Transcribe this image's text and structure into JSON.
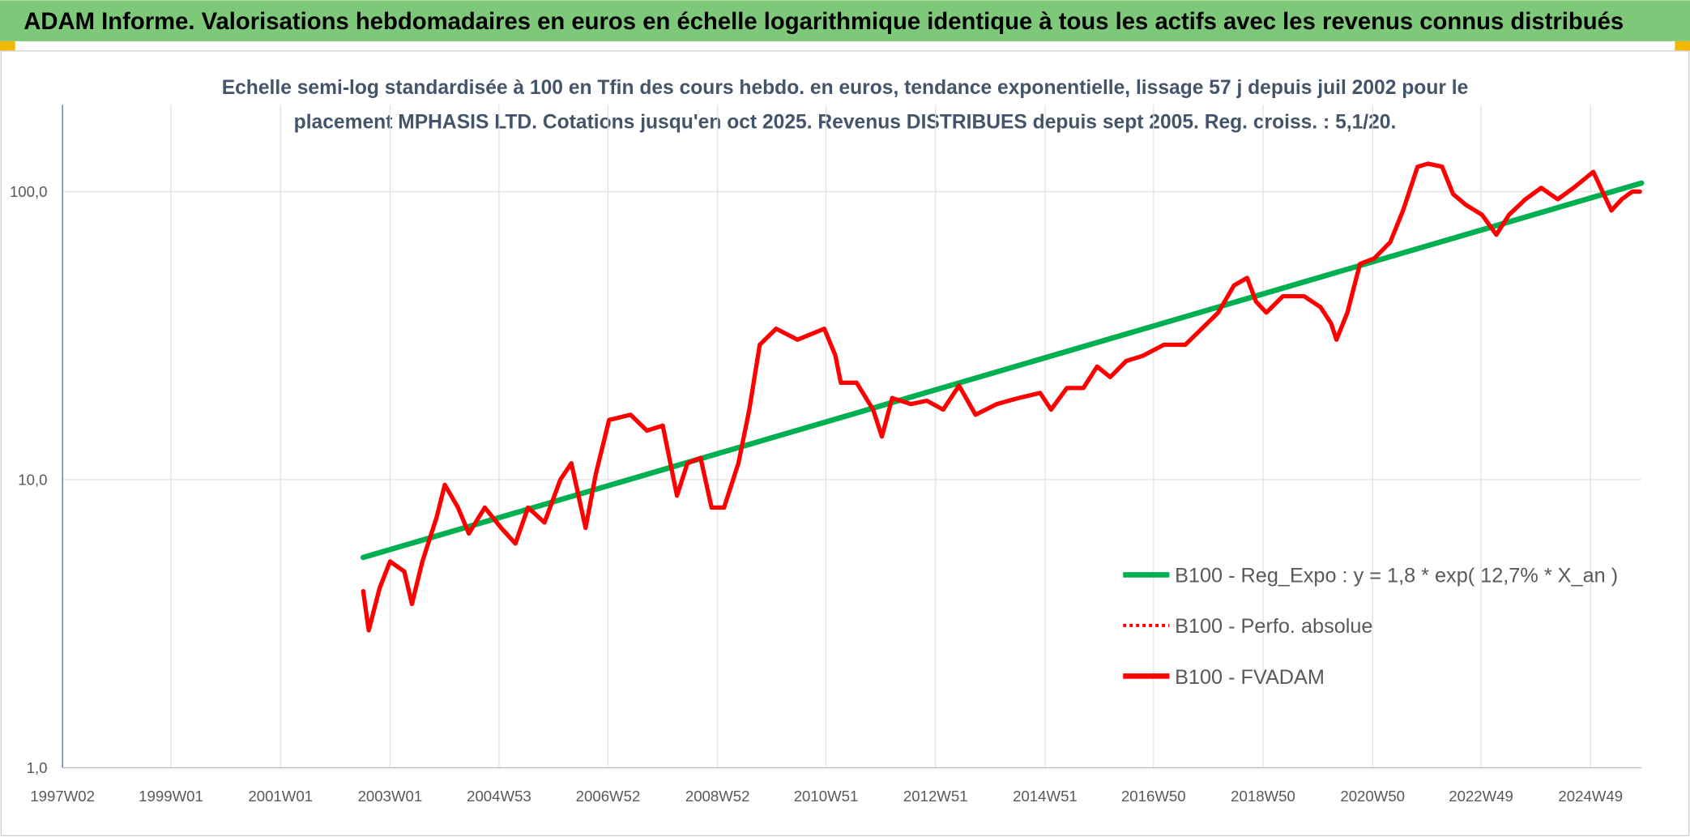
{
  "chart_data": {
    "type": "line",
    "title": "ADAM Informe. Valorisations hebdomadaires en euros en échelle logarithmique identique à tous les actifs avec les revenus connus distribués",
    "subtitle": [
      "Echelle semi-log standardisée à 100 en Tfin des cours hebdo. en euros, tendance exponentielle, lissage 57 j depuis juil 2002 pour le",
      "placement MPHASIS LTD. Cotations jusqu'en oct 2025. Revenus DISTRIBUES depuis sept 2005. Reg. croiss. : 5,1/20."
    ],
    "log_scale": true,
    "grid": true,
    "legend": "right",
    "xlim": [
      1997.02,
      2025.85
    ],
    "xticks": [
      {
        "value": 1997.02,
        "label": "1997W02"
      },
      {
        "value": 1999.0,
        "label": "1999W01"
      },
      {
        "value": 2001.0,
        "label": "2001W01"
      },
      {
        "value": 2003.0,
        "label": "2003W01"
      },
      {
        "value": 2004.99,
        "label": "2004W53"
      },
      {
        "value": 2006.98,
        "label": "2006W52"
      },
      {
        "value": 2008.98,
        "label": "2008W52"
      },
      {
        "value": 2010.96,
        "label": "2010W51"
      },
      {
        "value": 2012.96,
        "label": "2012W51"
      },
      {
        "value": 2014.96,
        "label": "2014W51"
      },
      {
        "value": 2016.94,
        "label": "2016W50"
      },
      {
        "value": 2018.94,
        "label": "2018W50"
      },
      {
        "value": 2020.94,
        "label": "2020W50"
      },
      {
        "value": 2022.92,
        "label": "2022W49"
      },
      {
        "value": 2024.92,
        "label": "2024W49"
      }
    ],
    "ylim": [
      1,
      200
    ],
    "yticks": [
      {
        "value": 1,
        "label": "1,0"
      },
      {
        "value": 10,
        "label": "10,0"
      },
      {
        "value": 100,
        "label": "100,0"
      }
    ],
    "series": [
      {
        "name": "B100 - Reg_Expo : y = 1,8 * exp( 12,7% *  X_an )",
        "color": "#00b050",
        "style": "solid",
        "x": [
          2002.51,
          2025.85
        ],
        "values": [
          5.37,
          107
        ]
      },
      {
        "name": "B100 - Perfo. absolue",
        "color": "#ff0000",
        "style": "dotted",
        "x": [
          2002.51,
          2002.61,
          2002.81,
          2003.0,
          2003.26,
          2003.4,
          2003.59,
          2003.85,
          2004.0,
          2004.24,
          2004.44,
          2004.73,
          2005.03,
          2005.29,
          2005.52,
          2005.82,
          2006.11,
          2006.31,
          2006.57,
          2006.76,
          2007.0,
          2007.39,
          2007.69,
          2007.98,
          2008.24,
          2008.43,
          2008.67,
          2008.87,
          2009.1,
          2009.36,
          2009.56,
          2009.75,
          2010.05,
          2010.44,
          2010.93,
          2011.13,
          2011.23,
          2011.52,
          2011.82,
          2011.98,
          2012.17,
          2012.51,
          2012.8,
          2013.1,
          2013.39,
          2013.69,
          2014.08,
          2014.48,
          2014.87,
          2015.07,
          2015.36,
          2015.66,
          2015.91,
          2016.15,
          2016.44,
          2016.74,
          2017.13,
          2017.52,
          2017.82,
          2018.12,
          2018.41,
          2018.65,
          2018.81,
          2019.0,
          2019.3,
          2019.69,
          2019.99,
          2020.18,
          2020.28,
          2020.48,
          2020.71,
          2020.97,
          2021.26,
          2021.5,
          2021.76,
          2021.95,
          2022.21,
          2022.41,
          2022.64,
          2022.94,
          2023.2,
          2023.43,
          2023.73,
          2024.02,
          2024.32,
          2024.61,
          2024.97,
          2025.16,
          2025.3,
          2025.49,
          2025.68,
          2025.82
        ],
        "values": [
          4.1,
          3.0,
          4.2,
          5.2,
          4.8,
          3.7,
          5.2,
          7.4,
          9.6,
          8.0,
          6.5,
          8.0,
          6.8,
          6.0,
          8.0,
          7.1,
          10.0,
          11.4,
          6.8,
          10.5,
          16.1,
          16.8,
          14.8,
          15.4,
          8.8,
          11.4,
          11.9,
          8.0,
          8.0,
          11.4,
          17.5,
          29.4,
          33.4,
          30.6,
          33.4,
          27.0,
          21.7,
          21.7,
          17.5,
          14.1,
          19.2,
          18.3,
          18.8,
          17.5,
          21.2,
          16.8,
          18.3,
          19.2,
          20.0,
          17.5,
          20.8,
          20.8,
          24.7,
          22.7,
          25.8,
          26.9,
          29.4,
          29.4,
          33.4,
          38.0,
          47.2,
          50.2,
          41.5,
          38.0,
          43.3,
          43.3,
          39.7,
          34.9,
          30.6,
          38.0,
          56.1,
          58.6,
          66.7,
          86.4,
          121.9,
          125,
          122,
          98,
          90,
          83,
          70.8,
          83,
          94,
          103,
          94,
          103,
          117,
          98,
          86,
          94,
          100,
          100
        ]
      },
      {
        "name": "B100 - FVADAM",
        "color": "#ff0000",
        "style": "solid",
        "x": [
          2002.51,
          2002.61,
          2002.81,
          2003.0,
          2003.26,
          2003.4,
          2003.59,
          2003.85,
          2004.0,
          2004.24,
          2004.44,
          2004.73,
          2005.03,
          2005.29,
          2005.52,
          2005.82,
          2006.11,
          2006.31,
          2006.57,
          2006.76,
          2007.0,
          2007.39,
          2007.69,
          2007.98,
          2008.24,
          2008.43,
          2008.67,
          2008.87,
          2009.1,
          2009.36,
          2009.56,
          2009.75,
          2010.05,
          2010.44,
          2010.93,
          2011.13,
          2011.23,
          2011.52,
          2011.82,
          2011.98,
          2012.17,
          2012.51,
          2012.8,
          2013.1,
          2013.39,
          2013.69,
          2014.08,
          2014.48,
          2014.87,
          2015.07,
          2015.36,
          2015.66,
          2015.91,
          2016.15,
          2016.44,
          2016.74,
          2017.13,
          2017.52,
          2017.82,
          2018.12,
          2018.41,
          2018.65,
          2018.81,
          2019.0,
          2019.3,
          2019.69,
          2019.99,
          2020.18,
          2020.28,
          2020.48,
          2020.71,
          2020.97,
          2021.26,
          2021.5,
          2021.76,
          2021.95,
          2022.21,
          2022.41,
          2022.64,
          2022.94,
          2023.2,
          2023.43,
          2023.73,
          2024.02,
          2024.32,
          2024.61,
          2024.97,
          2025.16,
          2025.3,
          2025.49,
          2025.68,
          2025.82
        ],
        "values": [
          4.1,
          3.0,
          4.2,
          5.2,
          4.8,
          3.7,
          5.2,
          7.4,
          9.6,
          8.0,
          6.5,
          8.0,
          6.8,
          6.0,
          8.0,
          7.1,
          10.0,
          11.4,
          6.8,
          10.5,
          16.1,
          16.8,
          14.8,
          15.4,
          8.8,
          11.4,
          11.9,
          8.0,
          8.0,
          11.4,
          17.5,
          29.4,
          33.4,
          30.6,
          33.4,
          27.0,
          21.7,
          21.7,
          17.5,
          14.1,
          19.2,
          18.3,
          18.8,
          17.5,
          21.2,
          16.8,
          18.3,
          19.2,
          20.0,
          17.5,
          20.8,
          20.8,
          24.7,
          22.7,
          25.8,
          26.9,
          29.4,
          29.4,
          33.4,
          38.0,
          47.2,
          50.2,
          41.5,
          38.0,
          43.3,
          43.3,
          39.7,
          34.9,
          30.6,
          38.0,
          56.1,
          58.6,
          66.7,
          86.4,
          121.9,
          125,
          122,
          98,
          90,
          83,
          70.8,
          83,
          94,
          103,
          94,
          103,
          117,
          98,
          86,
          94,
          100,
          100
        ]
      }
    ]
  }
}
